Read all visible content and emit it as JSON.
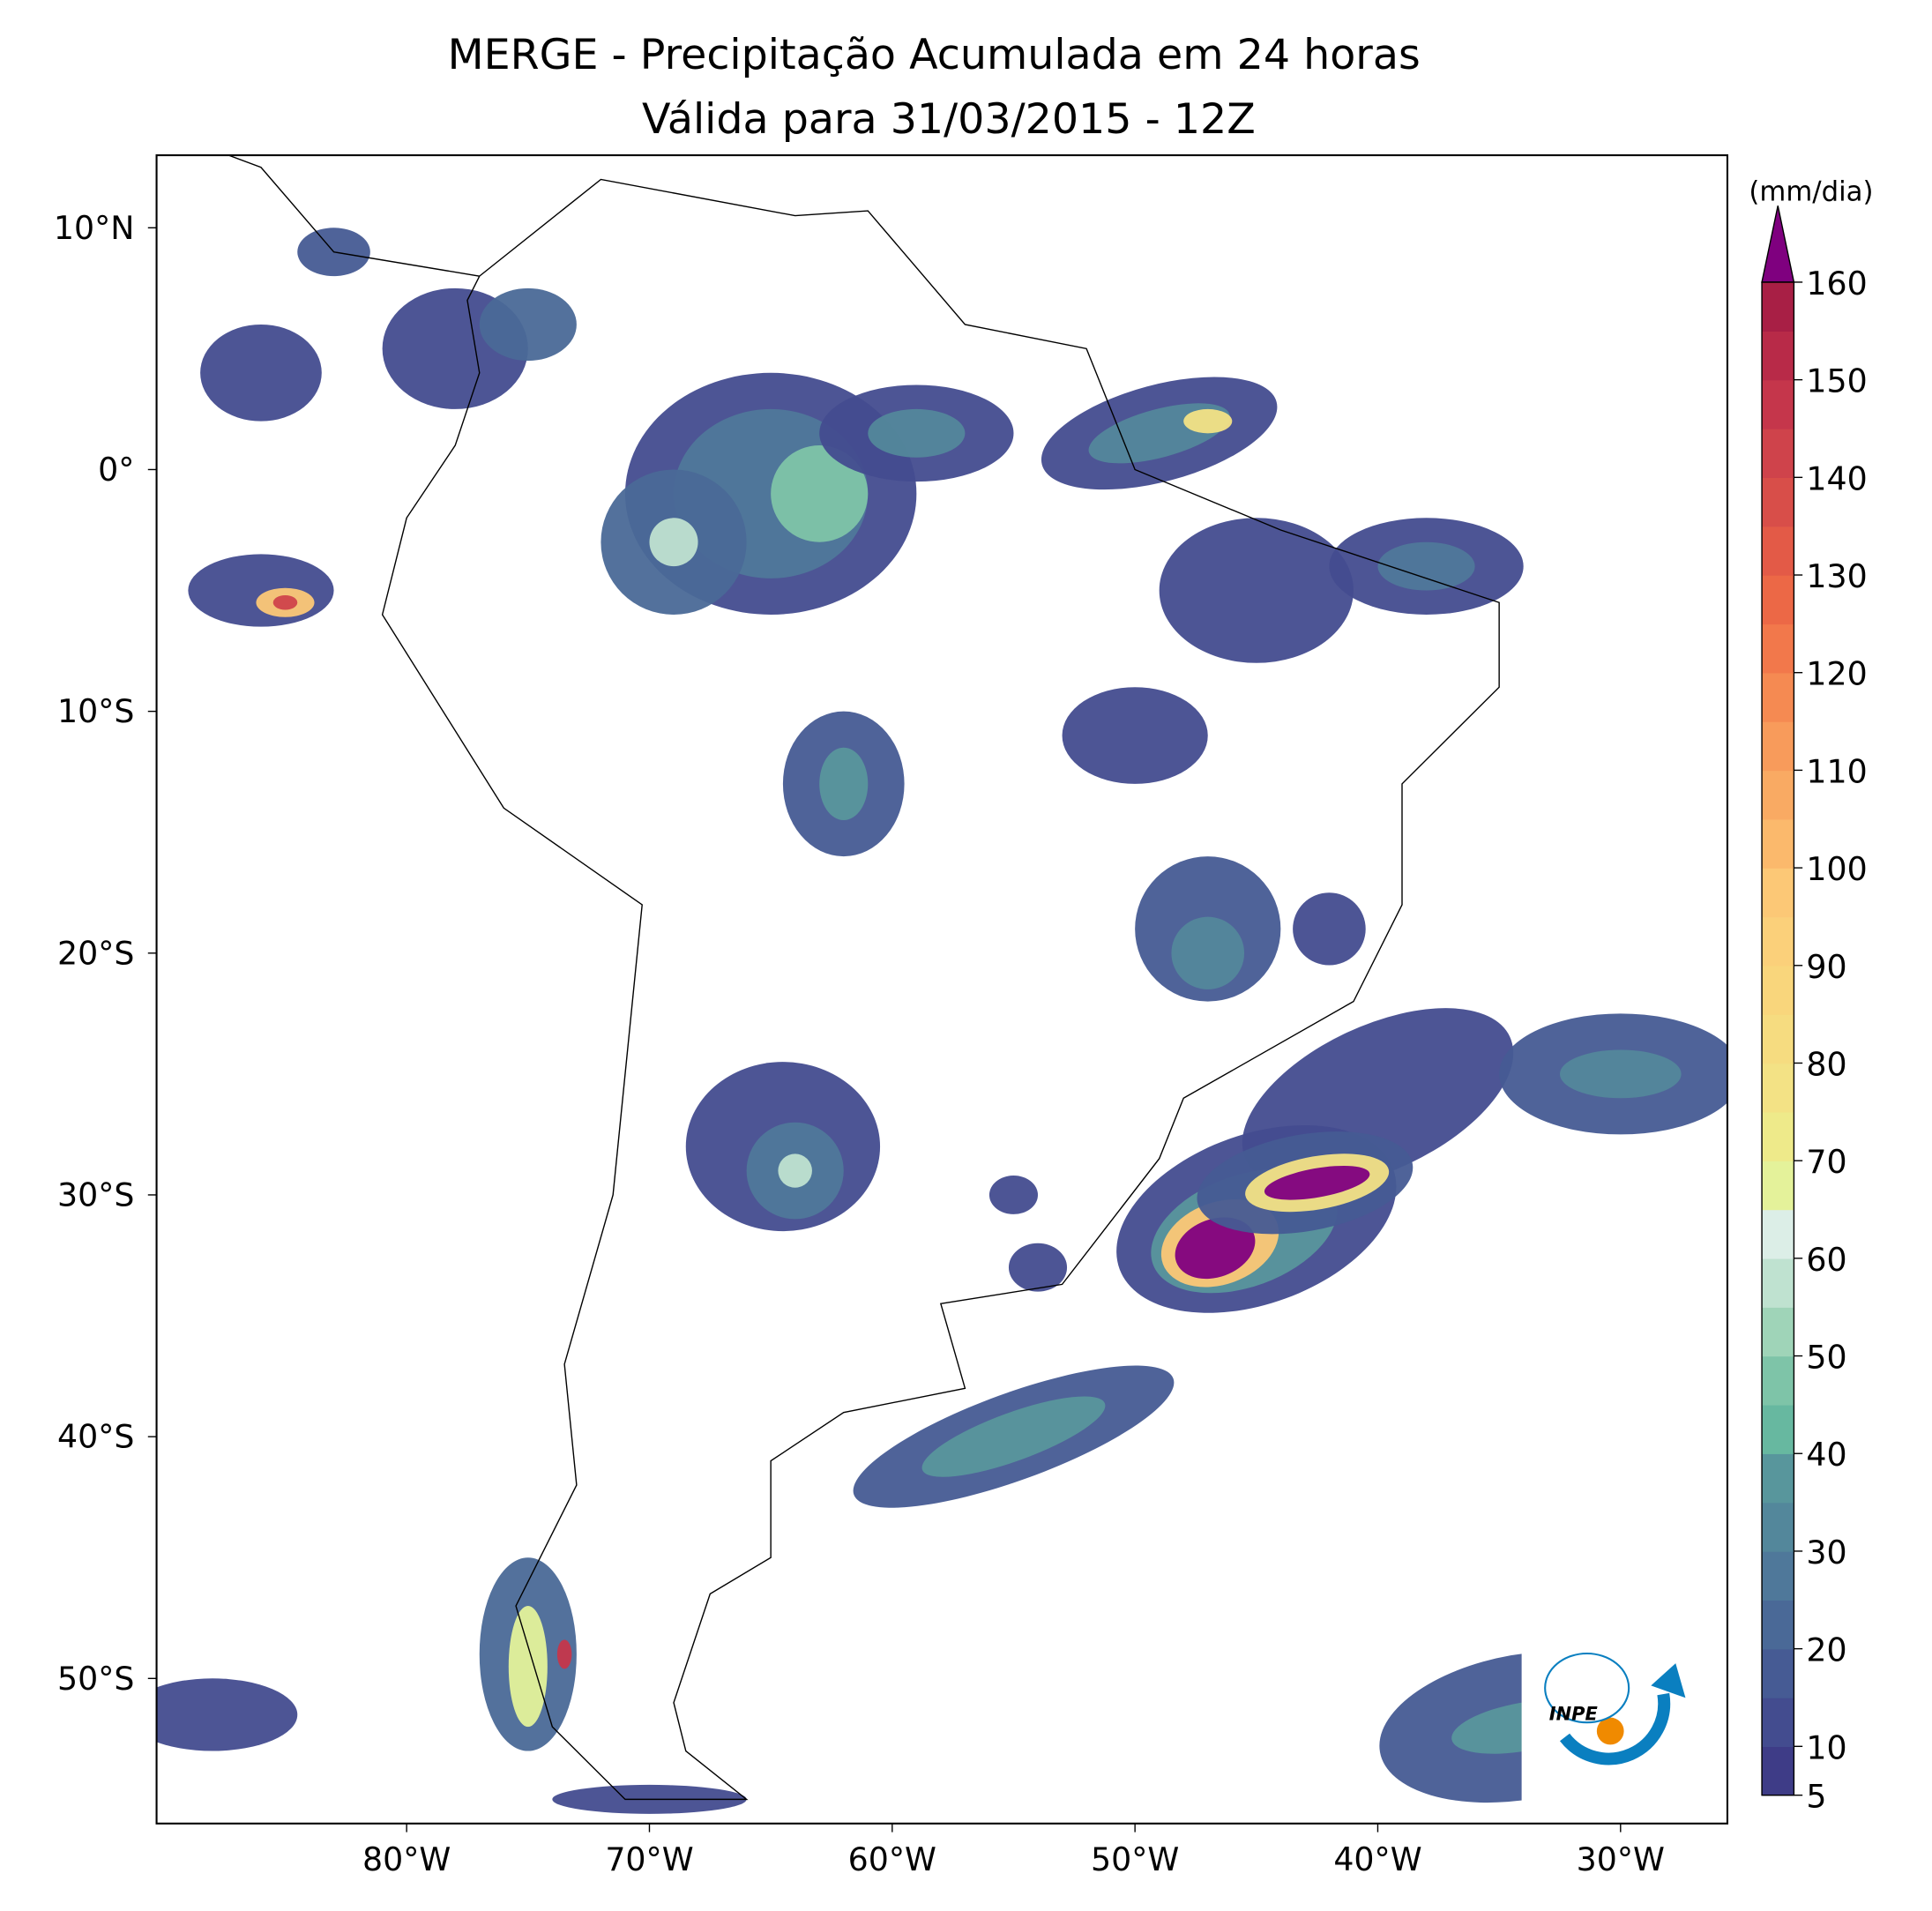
{
  "chart_data": {
    "type": "map",
    "title": "MERGE - Precipitação Acumulada em 24 horas",
    "subtitle": "Válida para 31/03/2015 - 12Z",
    "xlim": [
      -90.3,
      -25.6
    ],
    "ylim": [
      -56,
      13
    ],
    "xticks": [
      {
        "value": -80,
        "label": "80°W"
      },
      {
        "value": -70,
        "label": "70°W"
      },
      {
        "value": -60,
        "label": "60°W"
      },
      {
        "value": -50,
        "label": "50°W"
      },
      {
        "value": -40,
        "label": "40°W"
      },
      {
        "value": -30,
        "label": "30°W"
      }
    ],
    "yticks": [
      {
        "value": 10,
        "label": "10°N"
      },
      {
        "value": 0,
        "label": "0°"
      },
      {
        "value": -10,
        "label": "10°S"
      },
      {
        "value": -20,
        "label": "20°S"
      },
      {
        "value": -30,
        "label": "30°S"
      },
      {
        "value": -40,
        "label": "40°S"
      },
      {
        "value": -50,
        "label": "50°S"
      }
    ],
    "colorbar": {
      "label": "(mm/dia)",
      "lim": [
        5,
        160
      ],
      "ticks": [
        5,
        10,
        20,
        30,
        40,
        50,
        60,
        70,
        80,
        90,
        100,
        110,
        120,
        130,
        140,
        150,
        160
      ],
      "colors": [
        "#3e3c87",
        "#434c8f",
        "#465b94",
        "#4a6997",
        "#4f789a",
        "#53879b",
        "#58969c",
        "#67b8a0",
        "#7ec4a8",
        "#9fd4b8",
        "#bfe2d0",
        "#dceee7",
        "#e4f29a",
        "#eeea8a",
        "#f3e285",
        "#f6dc80",
        "#f9d67c",
        "#fbd07a",
        "#fcc876",
        "#fbb96c",
        "#f9aa63",
        "#f89b5b",
        "#f58a52",
        "#f2784b",
        "#ec6846",
        "#e35a47",
        "#d84e49",
        "#cf434b",
        "#c5364b",
        "#b82a48",
        "#a81f45"
      ],
      "extend_color": "#7f007f"
    },
    "logo": "INPE"
  }
}
